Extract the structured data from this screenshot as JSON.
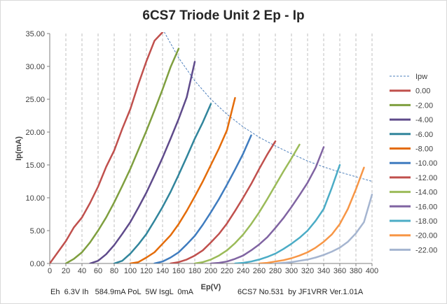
{
  "chart_data": {
    "type": "line",
    "title": "6CS7 Triode Unit 2 Ep - Ip",
    "xlabel": "Ep(V)",
    "ylabel": "Ip(mA)",
    "xlim": [
      0,
      400
    ],
    "ylim": [
      0,
      35
    ],
    "x_ticks": [
      "0",
      "20",
      "40",
      "60",
      "80",
      "100",
      "120",
      "140",
      "160",
      "180",
      "200",
      "220",
      "240",
      "260",
      "280",
      "300",
      "320",
      "340",
      "360",
      "380",
      "400"
    ],
    "y_ticks": [
      "0.00",
      "5.00",
      "10.00",
      "15.00",
      "20.00",
      "25.00",
      "30.00",
      "35.00"
    ],
    "grid": "vertical dashed",
    "legend_position": "right",
    "series": [
      {
        "name": "0.00",
        "color": "#c0504d",
        "points": [
          [
            0,
            0
          ],
          [
            20,
            3.4
          ],
          [
            30,
            5.5
          ],
          [
            40,
            7.0
          ],
          [
            50,
            9.2
          ],
          [
            60,
            11.7
          ],
          [
            70,
            14.7
          ],
          [
            80,
            17.2
          ],
          [
            90,
            20.5
          ],
          [
            100,
            23.5
          ],
          [
            110,
            27.3
          ],
          [
            120,
            30.8
          ],
          [
            130,
            33.9
          ],
          [
            140,
            35.2
          ]
        ]
      },
      {
        "name": "-2.00",
        "color": "#7f9f3f",
        "points": [
          [
            20,
            0
          ],
          [
            30,
            0.7
          ],
          [
            40,
            1.7
          ],
          [
            50,
            3.2
          ],
          [
            60,
            5.0
          ],
          [
            70,
            7.0
          ],
          [
            80,
            9.3
          ],
          [
            90,
            11.8
          ],
          [
            100,
            14.4
          ],
          [
            110,
            17.3
          ],
          [
            120,
            20.2
          ],
          [
            130,
            23.3
          ],
          [
            140,
            26.5
          ],
          [
            150,
            29.9
          ],
          [
            160,
            32.7
          ]
        ]
      },
      {
        "name": "-4.00",
        "color": "#5f4b8b",
        "points": [
          [
            50,
            0
          ],
          [
            60,
            0.4
          ],
          [
            70,
            1.4
          ],
          [
            80,
            2.8
          ],
          [
            90,
            4.5
          ],
          [
            100,
            6.3
          ],
          [
            110,
            8.5
          ],
          [
            120,
            10.8
          ],
          [
            130,
            13.4
          ],
          [
            140,
            16.1
          ],
          [
            150,
            19.0
          ],
          [
            160,
            22.0
          ],
          [
            170,
            25.3
          ],
          [
            180,
            30.7
          ]
        ]
      },
      {
        "name": "-6.00",
        "color": "#31859c",
        "points": [
          [
            80,
            0
          ],
          [
            90,
            0.4
          ],
          [
            100,
            1.5
          ],
          [
            110,
            2.9
          ],
          [
            120,
            4.5
          ],
          [
            130,
            6.5
          ],
          [
            140,
            8.6
          ],
          [
            150,
            10.9
          ],
          [
            160,
            13.5
          ],
          [
            170,
            16.2
          ],
          [
            180,
            19.0
          ],
          [
            190,
            21.5
          ],
          [
            200,
            24.3
          ]
        ]
      },
      {
        "name": "-8.00",
        "color": "#e46c0a",
        "points": [
          [
            100,
            0
          ],
          [
            110,
            0.2
          ],
          [
            120,
            0.9
          ],
          [
            130,
            1.7
          ],
          [
            140,
            3.0
          ],
          [
            150,
            4.3
          ],
          [
            160,
            6.0
          ],
          [
            170,
            8.0
          ],
          [
            180,
            10.2
          ],
          [
            190,
            12.5
          ],
          [
            200,
            15.0
          ],
          [
            210,
            17.5
          ],
          [
            220,
            20.3
          ],
          [
            230,
            25.2
          ]
        ]
      },
      {
        "name": "-10.00",
        "color": "#3f7cbf",
        "points": [
          [
            130,
            0
          ],
          [
            140,
            0.3
          ],
          [
            150,
            0.9
          ],
          [
            160,
            1.7
          ],
          [
            170,
            2.9
          ],
          [
            180,
            4.2
          ],
          [
            190,
            5.9
          ],
          [
            200,
            7.8
          ],
          [
            210,
            9.8
          ],
          [
            220,
            12.0
          ],
          [
            230,
            14.3
          ],
          [
            240,
            16.7
          ],
          [
            250,
            19.5
          ]
        ]
      },
      {
        "name": "-12.00",
        "color": "#c0504d",
        "points": [
          [
            150,
            0
          ],
          [
            160,
            0.2
          ],
          [
            170,
            0.6
          ],
          [
            180,
            1.2
          ],
          [
            190,
            2.0
          ],
          [
            200,
            3.2
          ],
          [
            210,
            4.5
          ],
          [
            220,
            6.1
          ],
          [
            230,
            8.0
          ],
          [
            240,
            10.0
          ],
          [
            250,
            12.1
          ],
          [
            260,
            14.4
          ],
          [
            270,
            16.6
          ],
          [
            280,
            18.6
          ]
        ]
      },
      {
        "name": "-14.00",
        "color": "#9bbb59",
        "points": [
          [
            180,
            0
          ],
          [
            190,
            0.2
          ],
          [
            200,
            0.6
          ],
          [
            210,
            1.2
          ],
          [
            220,
            2.0
          ],
          [
            230,
            3.1
          ],
          [
            240,
            4.4
          ],
          [
            250,
            6.0
          ],
          [
            260,
            7.8
          ],
          [
            270,
            9.8
          ],
          [
            280,
            11.9
          ],
          [
            290,
            14.0
          ],
          [
            300,
            16.0
          ],
          [
            310,
            18.1
          ]
        ]
      },
      {
        "name": "-16.00",
        "color": "#8064a2",
        "points": [
          [
            200,
            0
          ],
          [
            210,
            0.1
          ],
          [
            220,
            0.3
          ],
          [
            230,
            0.7
          ],
          [
            240,
            1.2
          ],
          [
            250,
            2.0
          ],
          [
            260,
            2.9
          ],
          [
            270,
            4.0
          ],
          [
            280,
            5.4
          ],
          [
            290,
            6.9
          ],
          [
            300,
            8.6
          ],
          [
            310,
            10.4
          ],
          [
            320,
            12.3
          ],
          [
            330,
            14.6
          ],
          [
            340,
            17.7
          ]
        ]
      },
      {
        "name": "-18.00",
        "color": "#4bacc6",
        "points": [
          [
            230,
            0
          ],
          [
            240,
            0.1
          ],
          [
            250,
            0.3
          ],
          [
            260,
            0.6
          ],
          [
            270,
            1.0
          ],
          [
            280,
            1.5
          ],
          [
            290,
            2.2
          ],
          [
            300,
            3.0
          ],
          [
            310,
            3.9
          ],
          [
            320,
            5.0
          ],
          [
            330,
            6.5
          ],
          [
            340,
            8.3
          ],
          [
            350,
            11.5
          ],
          [
            360,
            15.0
          ]
        ]
      },
      {
        "name": "-20.00",
        "color": "#f79646",
        "points": [
          [
            260,
            0
          ],
          [
            270,
            0.1
          ],
          [
            280,
            0.3
          ],
          [
            290,
            0.5
          ],
          [
            300,
            0.8
          ],
          [
            310,
            1.2
          ],
          [
            320,
            1.7
          ],
          [
            330,
            2.4
          ],
          [
            340,
            3.3
          ],
          [
            350,
            4.4
          ],
          [
            360,
            6.0
          ],
          [
            370,
            8.3
          ],
          [
            380,
            11.3
          ],
          [
            390,
            14.6
          ]
        ]
      },
      {
        "name": "-22.00",
        "color": "#a5b5d0",
        "points": [
          [
            280,
            0
          ],
          [
            290,
            0.1
          ],
          [
            300,
            0.2
          ],
          [
            310,
            0.4
          ],
          [
            320,
            0.6
          ],
          [
            330,
            0.9
          ],
          [
            340,
            1.3
          ],
          [
            350,
            1.8
          ],
          [
            360,
            2.4
          ],
          [
            370,
            3.3
          ],
          [
            380,
            4.6
          ],
          [
            390,
            6.3
          ],
          [
            400,
            10.5
          ]
        ]
      }
    ],
    "reference_line": {
      "name": "Ipw",
      "color": "#4f81bd",
      "style": "dotted",
      "points": [
        [
          140,
          35.7
        ],
        [
          160,
          31.3
        ],
        [
          180,
          27.8
        ],
        [
          200,
          25.0
        ],
        [
          220,
          22.7
        ],
        [
          240,
          20.8
        ],
        [
          260,
          19.2
        ],
        [
          280,
          17.9
        ],
        [
          300,
          16.7
        ],
        [
          320,
          15.6
        ],
        [
          340,
          14.7
        ],
        [
          360,
          13.9
        ],
        [
          380,
          13.2
        ],
        [
          400,
          12.5
        ]
      ]
    }
  },
  "footer": {
    "left": "Eh  6.3V Ih   584.9mA PoL  5W IsgL  0mA",
    "right": "6CS7 No.531  by JF1VRR Ver.1.01A"
  }
}
